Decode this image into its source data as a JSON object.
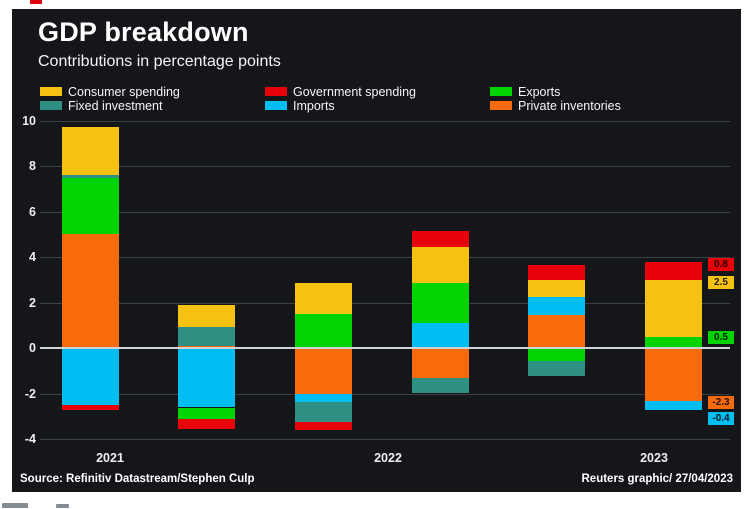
{
  "header": {
    "title": "GDP breakdown",
    "subtitle": "Contributions in percentage points"
  },
  "legend": [
    {
      "key": "consumer",
      "label": "Consumer spending",
      "color": "#F6C211"
    },
    {
      "key": "fixed",
      "label": "Fixed investment",
      "color": "#2E8F83"
    },
    {
      "key": "government",
      "label": "Government spending",
      "color": "#E8000B"
    },
    {
      "key": "imports",
      "label": "Imports",
      "color": "#00BDF2"
    },
    {
      "key": "exports",
      "label": "Exports",
      "color": "#02D402"
    },
    {
      "key": "inventories",
      "label": "Private inventories",
      "color": "#F76B0C"
    }
  ],
  "chart_data": {
    "type": "bar",
    "stacked": true,
    "title": "GDP breakdown",
    "subtitle": "Contributions in percentage points",
    "ylabel": "percentage points",
    "ylim": [
      -4,
      10
    ],
    "yticks": [
      10,
      8,
      6,
      4,
      2,
      0,
      -2,
      -4
    ],
    "grid": true,
    "legend_position": "top",
    "x_tick_labels": [
      "2021",
      "2022",
      "2023"
    ],
    "bars": [
      {
        "group": "2021",
        "segments": [
          [
            "inventories",
            5.0
          ],
          [
            "exports",
            2.5
          ],
          [
            "fixed",
            0.1
          ],
          [
            "consumer",
            2.1
          ],
          [
            "imports",
            -2.5
          ],
          [
            "government",
            -0.2
          ]
        ]
      },
      {
        "group": "2022",
        "segments": [
          [
            "inventories",
            0.1
          ],
          [
            "fixed",
            0.85
          ],
          [
            "consumer",
            0.95
          ],
          [
            "imports",
            -2.6
          ],
          [
            "exports",
            -0.5
          ],
          [
            "government",
            -0.45
          ]
        ]
      },
      {
        "group": "2022",
        "segments": [
          [
            "exports",
            1.5
          ],
          [
            "consumer",
            1.35
          ],
          [
            "inventories",
            -2.0
          ],
          [
            "imports",
            -0.35
          ],
          [
            "fixed",
            -0.9
          ],
          [
            "government",
            -0.35
          ]
        ]
      },
      {
        "group": "2022",
        "segments": [
          [
            "imports",
            1.1
          ],
          [
            "exports",
            1.75
          ],
          [
            "consumer",
            1.6
          ],
          [
            "government",
            0.7
          ],
          [
            "inventories",
            -1.3
          ],
          [
            "fixed",
            -0.65
          ]
        ]
      },
      {
        "group": "2022",
        "segments": [
          [
            "inventories",
            1.45
          ],
          [
            "imports",
            0.8
          ],
          [
            "consumer",
            0.75
          ],
          [
            "government",
            0.65
          ],
          [
            "exports",
            -0.55
          ],
          [
            "fixed",
            -0.65
          ]
        ]
      },
      {
        "group": "2023",
        "segments": [
          [
            "exports",
            0.5
          ],
          [
            "consumer",
            2.5
          ],
          [
            "government",
            0.8
          ],
          [
            "inventories",
            -2.3
          ],
          [
            "imports",
            -0.4
          ]
        ]
      }
    ],
    "value_labels": [
      {
        "text": "0.8",
        "key": "government",
        "anchor": 3.68
      },
      {
        "text": "2.5",
        "key": "consumer",
        "anchor": 2.91
      },
      {
        "text": "0.5",
        "key": "exports",
        "anchor": 0.47
      },
      {
        "text": "-2.3",
        "key": "inventories",
        "anchor": -2.4
      },
      {
        "text": "-0.4",
        "key": "imports",
        "anchor": -3.08
      }
    ]
  },
  "y_axis": {
    "tick_labels": [
      "10",
      "8",
      "6",
      "4",
      "2",
      "0",
      "-2",
      "-4"
    ]
  },
  "footer": {
    "source": "Source: Refinitiv Datastream/Stephen Culp",
    "credit": "Reuters graphic/ 27/04/2023"
  }
}
